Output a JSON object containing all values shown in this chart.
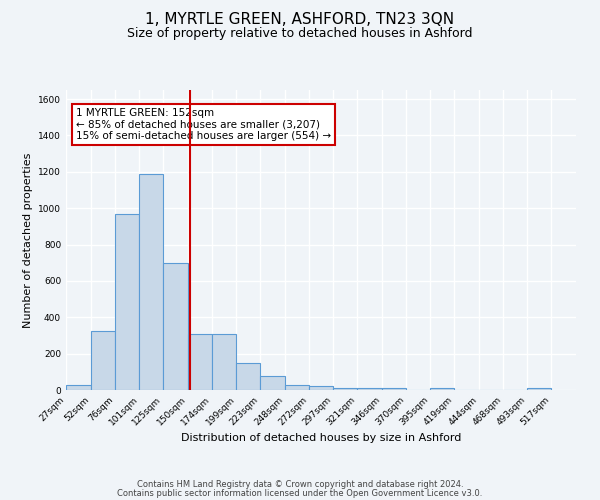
{
  "title": "1, MYRTLE GREEN, ASHFORD, TN23 3QN",
  "subtitle": "Size of property relative to detached houses in Ashford",
  "xlabel": "Distribution of detached houses by size in Ashford",
  "ylabel": "Number of detached properties",
  "bar_left_edges": [
    27,
    52,
    76,
    101,
    125,
    150,
    174,
    199,
    223,
    248,
    272,
    297,
    321,
    346,
    370,
    395,
    419,
    444,
    468,
    493
  ],
  "bar_widths": [
    25,
    24,
    25,
    24,
    25,
    24,
    25,
    24,
    25,
    24,
    25,
    24,
    25,
    24,
    25,
    24,
    25,
    24,
    25,
    24
  ],
  "bar_heights": [
    30,
    325,
    970,
    1190,
    700,
    310,
    310,
    150,
    75,
    30,
    20,
    10,
    10,
    10,
    0,
    10,
    0,
    0,
    0,
    10
  ],
  "bar_color": "#c8d8e8",
  "bar_edge_color": "#5b9bd5",
  "tick_labels": [
    "27sqm",
    "52sqm",
    "76sqm",
    "101sqm",
    "125sqm",
    "150sqm",
    "174sqm",
    "199sqm",
    "223sqm",
    "248sqm",
    "272sqm",
    "297sqm",
    "321sqm",
    "346sqm",
    "370sqm",
    "395sqm",
    "419sqm",
    "444sqm",
    "468sqm",
    "493sqm",
    "517sqm"
  ],
  "tick_positions": [
    27,
    52,
    76,
    101,
    125,
    150,
    174,
    199,
    223,
    248,
    272,
    297,
    321,
    346,
    370,
    395,
    419,
    444,
    468,
    493,
    517
  ],
  "ylim": [
    0,
    1650
  ],
  "xlim": [
    27,
    542
  ],
  "property_value": 152,
  "vline_color": "#cc0000",
  "annotation_title": "1 MYRTLE GREEN: 152sqm",
  "annotation_line1": "← 85% of detached houses are smaller (3,207)",
  "annotation_line2": "15% of semi-detached houses are larger (554) →",
  "annotation_box_color": "#ffffff",
  "annotation_box_edge_color": "#cc0000",
  "footer_line1": "Contains HM Land Registry data © Crown copyright and database right 2024.",
  "footer_line2": "Contains public sector information licensed under the Open Government Licence v3.0.",
  "background_color": "#f0f4f8",
  "grid_color": "#ffffff",
  "title_fontsize": 11,
  "subtitle_fontsize": 9,
  "ylabel_fontsize": 8,
  "xlabel_fontsize": 8,
  "tick_fontsize": 6.5,
  "annotation_fontsize": 7.5,
  "footer_fontsize": 6
}
